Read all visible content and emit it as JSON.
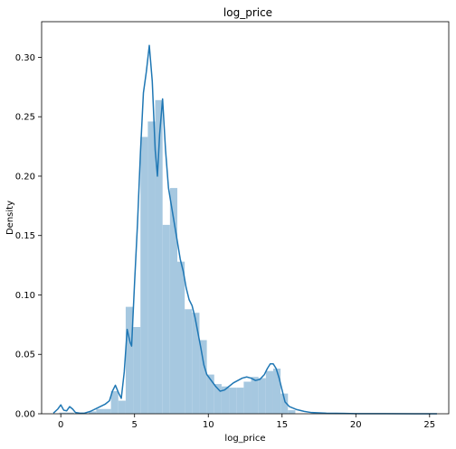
{
  "chart_data": {
    "type": "bar",
    "title": "log_price",
    "xlabel": "log_price",
    "ylabel": "Density",
    "xlim": [
      -1.3,
      26.3
    ],
    "ylim": [
      0,
      0.33
    ],
    "xticks": [
      0,
      5,
      10,
      15,
      20,
      25
    ],
    "yticks": [
      0.0,
      0.05,
      0.1,
      0.15,
      0.2,
      0.25,
      0.3
    ],
    "xtick_labels": [
      "0",
      "5",
      "10",
      "15",
      "20",
      "25"
    ],
    "ytick_labels": [
      "0.00",
      "0.05",
      "0.10",
      "0.15",
      "0.20",
      "0.25",
      "0.30"
    ],
    "grid": false,
    "bin_width": 0.5,
    "histogram": {
      "name": "",
      "color": "#a6c8e0",
      "bins": [
        {
          "start": -0.1,
          "density": 0.001
        },
        {
          "start": 0.4,
          "density": 0.001
        },
        {
          "start": 1.9,
          "density": 0.002
        },
        {
          "start": 2.4,
          "density": 0.004
        },
        {
          "start": 2.9,
          "density": 0.004
        },
        {
          "start": 3.4,
          "density": 0.019
        },
        {
          "start": 3.9,
          "density": 0.011
        },
        {
          "start": 4.4,
          "density": 0.09
        },
        {
          "start": 4.9,
          "density": 0.073
        },
        {
          "start": 5.4,
          "density": 0.233
        },
        {
          "start": 5.9,
          "density": 0.246
        },
        {
          "start": 6.4,
          "density": 0.264
        },
        {
          "start": 6.9,
          "density": 0.159
        },
        {
          "start": 7.4,
          "density": 0.19
        },
        {
          "start": 7.9,
          "density": 0.128
        },
        {
          "start": 8.4,
          "density": 0.088
        },
        {
          "start": 8.9,
          "density": 0.085
        },
        {
          "start": 9.4,
          "density": 0.062
        },
        {
          "start": 9.9,
          "density": 0.033
        },
        {
          "start": 10.4,
          "density": 0.025
        },
        {
          "start": 10.9,
          "density": 0.023
        },
        {
          "start": 11.4,
          "density": 0.022
        },
        {
          "start": 11.9,
          "density": 0.022
        },
        {
          "start": 12.4,
          "density": 0.027
        },
        {
          "start": 12.9,
          "density": 0.031
        },
        {
          "start": 13.4,
          "density": 0.03
        },
        {
          "start": 13.9,
          "density": 0.036
        },
        {
          "start": 14.4,
          "density": 0.038
        },
        {
          "start": 14.9,
          "density": 0.017
        },
        {
          "start": 15.4,
          "density": 0.003
        }
      ]
    },
    "kde": {
      "name": "",
      "color": "#1f77b4",
      "x": [
        -0.5,
        -0.2,
        0.0,
        0.2,
        0.4,
        0.6,
        0.8,
        1.0,
        1.3,
        1.6,
        2.0,
        2.5,
        3.0,
        3.3,
        3.5,
        3.7,
        3.9,
        4.1,
        4.3,
        4.5,
        4.7,
        4.8,
        5.0,
        5.2,
        5.4,
        5.6,
        5.8,
        6.0,
        6.2,
        6.4,
        6.55,
        6.7,
        6.9,
        7.1,
        7.3,
        7.5,
        7.7,
        7.9,
        8.1,
        8.3,
        8.5,
        8.7,
        8.9,
        9.1,
        9.3,
        9.5,
        9.7,
        9.9,
        10.2,
        10.5,
        10.8,
        11.1,
        11.4,
        11.7,
        12.0,
        12.3,
        12.6,
        12.9,
        13.2,
        13.5,
        13.8,
        14.0,
        14.2,
        14.4,
        14.6,
        14.8,
        15.0,
        15.2,
        15.5,
        16.0,
        16.5,
        17.0,
        18.0,
        20.0,
        22.0,
        24.0,
        25.5
      ],
      "y": [
        0.0005,
        0.004,
        0.0075,
        0.003,
        0.0025,
        0.006,
        0.004,
        0.001,
        0.0005,
        0.0005,
        0.002,
        0.005,
        0.008,
        0.011,
        0.019,
        0.024,
        0.018,
        0.013,
        0.035,
        0.071,
        0.06,
        0.057,
        0.11,
        0.16,
        0.22,
        0.27,
        0.288,
        0.31,
        0.28,
        0.222,
        0.2,
        0.235,
        0.265,
        0.222,
        0.19,
        0.175,
        0.16,
        0.145,
        0.13,
        0.12,
        0.106,
        0.096,
        0.091,
        0.081,
        0.068,
        0.055,
        0.041,
        0.033,
        0.028,
        0.023,
        0.019,
        0.02,
        0.023,
        0.026,
        0.028,
        0.03,
        0.031,
        0.03,
        0.028,
        0.029,
        0.033,
        0.038,
        0.042,
        0.042,
        0.038,
        0.03,
        0.02,
        0.01,
        0.006,
        0.0035,
        0.002,
        0.001,
        0.0005,
        0.0001,
        5e-05,
        2e-05,
        0.0
      ]
    }
  }
}
